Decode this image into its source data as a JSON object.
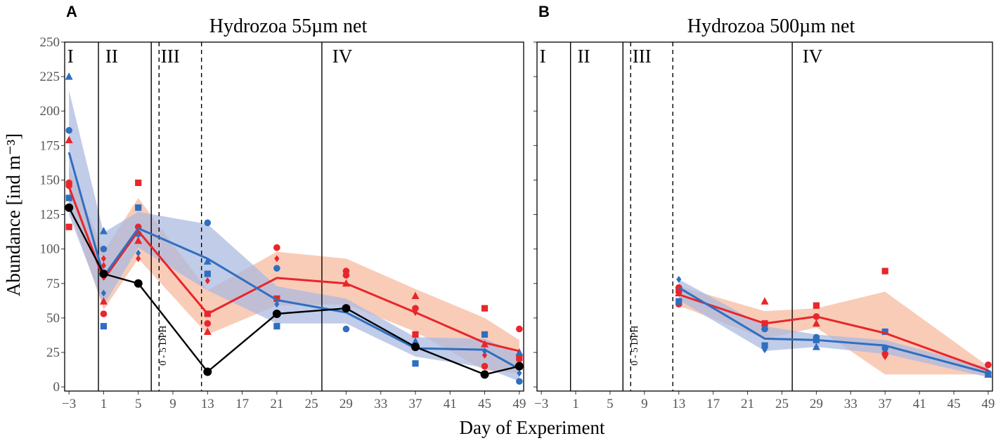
{
  "colors": {
    "red": "#e8262b",
    "blue": "#2f6fbf",
    "black": "#000000",
    "red_band": "#f6b89c",
    "blue_band": "#a9b8e0",
    "overlap_line": "#6f5f9a"
  },
  "chart_data": [
    {
      "type": "line",
      "panel": "A",
      "title": "Hydrozoa 55µm net",
      "xlabel": "Day of Experiment",
      "ylabel": "Abundance [ind m⁻³]",
      "xlim": [
        -3.5,
        49.5
      ],
      "ylim": [
        -3,
        250
      ],
      "xticks": [
        -3,
        1,
        5,
        9,
        13,
        17,
        21,
        25,
        29,
        33,
        37,
        41,
        45,
        49
      ],
      "xtick_labels": [
        "−3",
        "1",
        "5",
        "9",
        "13",
        "17",
        "21",
        "25",
        "29",
        "33",
        "37",
        "41",
        "45",
        "49"
      ],
      "yticks": [
        0,
        25,
        50,
        75,
        100,
        125,
        150,
        175,
        200,
        225,
        250
      ],
      "yticks_labels": [
        "0",
        "25",
        "50",
        "75",
        "100",
        "125",
        "150",
        "175",
        "200",
        "225",
        "250"
      ],
      "phases": [
        {
          "label": "I",
          "x": -3.2
        },
        {
          "label": "II",
          "x": 1.2
        },
        {
          "label": "III",
          "x": 7.6
        },
        {
          "label": "IV",
          "x": 27.4
        }
      ],
      "solid_vlines": [
        0.4,
        6.5,
        26.2
      ],
      "dashed_vlines": [
        7.4,
        12.3
      ],
      "dph_label": {
        "text": "0 - 5 DPH",
        "x": 8.2,
        "y": 30
      },
      "series": [
        {
          "name": "red",
          "color": "#e8262b",
          "line": [
            [
              -3,
              145
            ],
            [
              1,
              78
            ],
            [
              5,
              113
            ],
            [
              13,
              53
            ],
            [
              21,
              79
            ],
            [
              29,
              75
            ],
            [
              37,
              54
            ],
            [
              45,
              32
            ],
            [
              49,
              26
            ]
          ],
          "band_upper": [
            [
              -3,
              160
            ],
            [
              1,
              98
            ],
            [
              5,
              137
            ],
            [
              13,
              70
            ],
            [
              21,
              98
            ],
            [
              29,
              93
            ],
            [
              37,
              71
            ],
            [
              45,
              50
            ],
            [
              49,
              34
            ]
          ],
          "band_lower": [
            [
              -3,
              130
            ],
            [
              1,
              56
            ],
            [
              5,
              93
            ],
            [
              13,
              38
            ],
            [
              21,
              59
            ],
            [
              29,
              60
            ],
            [
              37,
              40
            ],
            [
              45,
              12
            ],
            [
              49,
              10
            ]
          ],
          "points": [
            {
              "s": "circle",
              "x": -3,
              "y": 148
            },
            {
              "s": "circle",
              "x": -3,
              "y": 146
            },
            {
              "s": "triangle",
              "x": -3,
              "y": 179
            },
            {
              "s": "square",
              "x": -3,
              "y": 116
            },
            {
              "s": "circle",
              "x": 1,
              "y": 53
            },
            {
              "s": "triangle",
              "x": 1,
              "y": 62
            },
            {
              "s": "diamond",
              "x": 1,
              "y": 88
            },
            {
              "s": "diamond",
              "x": 1,
              "y": 93
            },
            {
              "s": "square",
              "x": 5,
              "y": 148
            },
            {
              "s": "circle",
              "x": 5,
              "y": 116
            },
            {
              "s": "triangle",
              "x": 5,
              "y": 106
            },
            {
              "s": "diamond",
              "x": 5,
              "y": 93
            },
            {
              "s": "square",
              "x": 13,
              "y": 53
            },
            {
              "s": "circle",
              "x": 13,
              "y": 46
            },
            {
              "s": "triangle",
              "x": 13,
              "y": 40
            },
            {
              "s": "diamond",
              "x": 13,
              "y": 77
            },
            {
              "s": "circle",
              "x": 21,
              "y": 101
            },
            {
              "s": "diamond",
              "x": 21,
              "y": 93
            },
            {
              "s": "square",
              "x": 21,
              "y": 64
            },
            {
              "s": "circle",
              "x": 29,
              "y": 84
            },
            {
              "s": "circle",
              "x": 29,
              "y": 81
            },
            {
              "s": "triangle",
              "x": 29,
              "y": 75
            },
            {
              "s": "triangle",
              "x": 37,
              "y": 66
            },
            {
              "s": "circle",
              "x": 37,
              "y": 57
            },
            {
              "s": "diamond",
              "x": 37,
              "y": 54
            },
            {
              "s": "square",
              "x": 37,
              "y": 38
            },
            {
              "s": "square",
              "x": 45,
              "y": 57
            },
            {
              "s": "triangle",
              "x": 45,
              "y": 31
            },
            {
              "s": "diamond",
              "x": 45,
              "y": 23
            },
            {
              "s": "circle",
              "x": 45,
              "y": 15
            },
            {
              "s": "circle",
              "x": 49,
              "y": 42
            },
            {
              "s": "square",
              "x": 49,
              "y": 21
            },
            {
              "s": "triangle",
              "x": 49,
              "y": 18
            },
            {
              "s": "diamond",
              "x": 49,
              "y": 16
            }
          ]
        },
        {
          "name": "blue",
          "color": "#2f6fbf",
          "line": [
            [
              -3,
              170
            ],
            [
              1,
              80
            ],
            [
              5,
              115
            ],
            [
              13,
              93
            ],
            [
              21,
              63
            ],
            [
              29,
              54
            ],
            [
              37,
              28
            ],
            [
              45,
              27
            ],
            [
              49,
              13
            ]
          ],
          "band_upper": [
            [
              -3,
              215
            ],
            [
              1,
              112
            ],
            [
              5,
              127
            ],
            [
              13,
              118
            ],
            [
              21,
              73
            ],
            [
              29,
              64
            ],
            [
              37,
              36
            ],
            [
              45,
              35
            ],
            [
              49,
              24
            ]
          ],
          "band_lower": [
            [
              -3,
              125
            ],
            [
              1,
              59
            ],
            [
              5,
              101
            ],
            [
              13,
              70
            ],
            [
              21,
              46
            ],
            [
              29,
              46
            ],
            [
              37,
              22
            ],
            [
              45,
              14
            ],
            [
              49,
              4
            ]
          ],
          "points": [
            {
              "s": "triangle",
              "x": -3,
              "y": 225
            },
            {
              "s": "circle",
              "x": -3,
              "y": 186
            },
            {
              "s": "square",
              "x": -3,
              "y": 137
            },
            {
              "s": "triangle",
              "x": 1,
              "y": 113
            },
            {
              "s": "circle",
              "x": 1,
              "y": 100
            },
            {
              "s": "diamond",
              "x": 1,
              "y": 68
            },
            {
              "s": "square",
              "x": 1,
              "y": 44
            },
            {
              "s": "square",
              "x": 5,
              "y": 130
            },
            {
              "s": "circle",
              "x": 5,
              "y": 111
            },
            {
              "s": "diamond",
              "x": 5,
              "y": 97
            },
            {
              "s": "circle",
              "x": 13,
              "y": 119
            },
            {
              "s": "triangle",
              "x": 13,
              "y": 91
            },
            {
              "s": "square",
              "x": 13,
              "y": 82
            },
            {
              "s": "circle",
              "x": 21,
              "y": 86
            },
            {
              "s": "diamond",
              "x": 21,
              "y": 60
            },
            {
              "s": "square",
              "x": 21,
              "y": 44
            },
            {
              "s": "circle",
              "x": 29,
              "y": 42
            },
            {
              "s": "triangle",
              "x": 37,
              "y": 33
            },
            {
              "s": "square",
              "x": 37,
              "y": 17
            },
            {
              "s": "square",
              "x": 45,
              "y": 38
            },
            {
              "s": "diamond",
              "x": 45,
              "y": 26
            },
            {
              "s": "triangle",
              "x": 49,
              "y": 25
            },
            {
              "s": "square",
              "x": 49,
              "y": 15
            },
            {
              "s": "diamond",
              "x": 49,
              "y": 10
            },
            {
              "s": "circle",
              "x": 49,
              "y": 4
            }
          ]
        },
        {
          "name": "black",
          "color": "#000000",
          "line": [
            [
              -3,
              130
            ],
            [
              1,
              82
            ],
            [
              5,
              75
            ],
            [
              13,
              11
            ],
            [
              21,
              53
            ],
            [
              29,
              57
            ],
            [
              37,
              29
            ],
            [
              45,
              9
            ],
            [
              49,
              15
            ]
          ],
          "points": [
            {
              "s": "circle",
              "x": -3,
              "y": 130
            },
            {
              "s": "circle",
              "x": 1,
              "y": 82
            },
            {
              "s": "circle",
              "x": 5,
              "y": 75
            },
            {
              "s": "circle",
              "x": 13,
              "y": 11
            },
            {
              "s": "circle",
              "x": 21,
              "y": 53
            },
            {
              "s": "circle",
              "x": 29,
              "y": 57
            },
            {
              "s": "circle",
              "x": 37,
              "y": 29
            },
            {
              "s": "circle",
              "x": 45,
              "y": 9
            },
            {
              "s": "circle",
              "x": 49,
              "y": 15
            }
          ]
        }
      ]
    },
    {
      "type": "line",
      "panel": "B",
      "title": "Hydrozoa 500µm net",
      "xlabel": "Day of Experiment",
      "ylabel": "",
      "xlim": [
        -3.5,
        49.5
      ],
      "ylim": [
        -3,
        250
      ],
      "xticks": [
        -3,
        1,
        5,
        9,
        13,
        17,
        21,
        25,
        29,
        33,
        37,
        41,
        45,
        49
      ],
      "xtick_labels": [
        "−3",
        "1",
        "5",
        "9",
        "13",
        "17",
        "21",
        "25",
        "29",
        "33",
        "37",
        "41",
        "45",
        "49"
      ],
      "yticks": [
        0,
        25,
        50,
        75,
        100,
        125,
        150,
        175,
        200,
        225,
        250
      ],
      "yticks_labels": [],
      "phases": [
        {
          "label": "I",
          "x": -3.2
        },
        {
          "label": "II",
          "x": 1.2
        },
        {
          "label": "III",
          "x": 7.6
        },
        {
          "label": "IV",
          "x": 27.4
        }
      ],
      "solid_vlines": [
        0.4,
        6.5,
        26.2
      ],
      "dashed_vlines": [
        7.4,
        12.3
      ],
      "dph_label": {
        "text": "0 - 5 DPH",
        "x": 8.2,
        "y": 30
      },
      "series": [
        {
          "name": "red",
          "color": "#e8262b",
          "line": [
            [
              13,
              67
            ],
            [
              23,
              46
            ],
            [
              29,
              51
            ],
            [
              37,
              39
            ],
            [
              49,
              12
            ]
          ],
          "band_upper": [
            [
              13,
              73
            ],
            [
              23,
              55
            ],
            [
              29,
              57
            ],
            [
              37,
              69
            ],
            [
              49,
              15
            ]
          ],
          "band_lower": [
            [
              13,
              59
            ],
            [
              23,
              35
            ],
            [
              29,
              43
            ],
            [
              37,
              9
            ],
            [
              49,
              9
            ]
          ],
          "points": [
            {
              "s": "circle",
              "x": 13,
              "y": 72
            },
            {
              "s": "square",
              "x": 13,
              "y": 70
            },
            {
              "s": "triangle",
              "x": 13,
              "y": 68
            },
            {
              "s": "circle",
              "x": 13,
              "y": 60
            },
            {
              "s": "triangle",
              "x": 23,
              "y": 62
            },
            {
              "s": "square",
              "x": 23,
              "y": 46
            },
            {
              "s": "square",
              "x": 29,
              "y": 59
            },
            {
              "s": "circle",
              "x": 29,
              "y": 51
            },
            {
              "s": "triangle",
              "x": 29,
              "y": 46
            },
            {
              "s": "square",
              "x": 37,
              "y": 84
            },
            {
              "s": "circle",
              "x": 37,
              "y": 24
            },
            {
              "s": "diamond",
              "x": 37,
              "y": 22
            },
            {
              "s": "circle",
              "x": 49,
              "y": 16
            },
            {
              "s": "square",
              "x": 49,
              "y": 9
            }
          ]
        },
        {
          "name": "blue",
          "color": "#2f6fbf",
          "line": [
            [
              13,
              72
            ],
            [
              23,
              35
            ],
            [
              29,
              34
            ],
            [
              37,
              30
            ],
            [
              49,
              10
            ]
          ],
          "band_upper": [
            [
              13,
              78
            ],
            [
              23,
              44
            ],
            [
              29,
              38
            ],
            [
              37,
              34
            ],
            [
              49,
              14
            ]
          ],
          "band_lower": [
            [
              13,
              63
            ],
            [
              23,
              26
            ],
            [
              29,
              29
            ],
            [
              37,
              24
            ],
            [
              49,
              7
            ]
          ],
          "points": [
            {
              "s": "diamond",
              "x": 13,
              "y": 78
            },
            {
              "s": "square",
              "x": 13,
              "y": 62
            },
            {
              "s": "circle",
              "x": 23,
              "y": 42
            },
            {
              "s": "square",
              "x": 23,
              "y": 30
            },
            {
              "s": "diamond",
              "x": 23,
              "y": 27
            },
            {
              "s": "circle",
              "x": 29,
              "y": 36
            },
            {
              "s": "square",
              "x": 29,
              "y": 34
            },
            {
              "s": "triangle",
              "x": 29,
              "y": 29
            },
            {
              "s": "square",
              "x": 37,
              "y": 40
            },
            {
              "s": "circle",
              "x": 37,
              "y": 28
            },
            {
              "s": "circle",
              "x": 49,
              "y": 10
            },
            {
              "s": "triangle",
              "x": 49,
              "y": 9
            }
          ]
        }
      ]
    }
  ]
}
